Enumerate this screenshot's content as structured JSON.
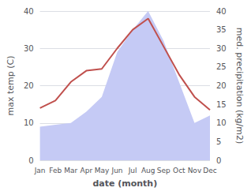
{
  "chart_data": {
    "type": "line",
    "xlabel": "date (month)",
    "ylabel": "max temp (C)",
    "y2label": "med. precipitation (kg/m2)",
    "categories": [
      "Jan",
      "Feb",
      "Mar",
      "Apr",
      "May",
      "Jun",
      "Jul",
      "Aug",
      "Sep",
      "Oct",
      "Nov",
      "Dec"
    ],
    "series": [
      {
        "type": "area",
        "axis": "y2",
        "color": "#c5caf5",
        "values": [
          9,
          9.5,
          10,
          13,
          17,
          29,
          35,
          40,
          32,
          21,
          10,
          12
        ]
      },
      {
        "type": "line",
        "axis": "y",
        "color": "#c0504d",
        "values": [
          14,
          16,
          21,
          24,
          24.5,
          30,
          35,
          38,
          30.5,
          23,
          17,
          13.5
        ]
      }
    ],
    "ylim": [
      0,
      40
    ],
    "yticks": [
      0,
      10,
      20,
      30,
      40
    ],
    "y2lim": [
      0,
      40
    ],
    "y2ticks": [
      0,
      5,
      10,
      15,
      20,
      25,
      30,
      35,
      40
    ],
    "grid": true
  }
}
